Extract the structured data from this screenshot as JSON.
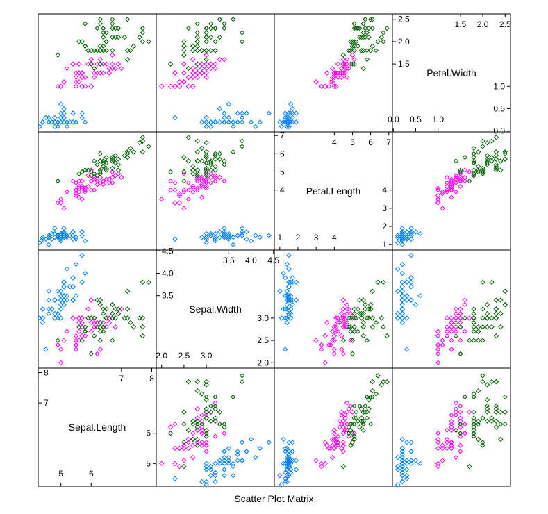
{
  "chart_data": {
    "type": "scatter",
    "title": "Scatter Plot Matrix",
    "variables": [
      {
        "name": "Sepal.Length",
        "range": [
          4.25,
          8.15
        ],
        "ticks_major": [
          5,
          6,
          7,
          8
        ],
        "ticks_outer": [
          7,
          8
        ],
        "ticks_inner": [
          5,
          6
        ]
      },
      {
        "name": "Sepal.Width",
        "range": [
          1.88,
          4.52
        ],
        "ticks_major": [
          2.0,
          2.5,
          3.0,
          3.5,
          4.0,
          4.5
        ],
        "ticks_outer": [
          3.5,
          4.0,
          4.5
        ],
        "ticks_inner": [
          2.0,
          2.5,
          3.0
        ],
        "tick_labels": [
          "2.0",
          "2.5",
          "3.0",
          "3.5",
          "4.0",
          "4.5"
        ]
      },
      {
        "name": "Petal.Length",
        "range": [
          0.7,
          7.2
        ],
        "ticks_major": [
          1,
          2,
          3,
          4,
          5,
          6,
          7
        ],
        "ticks_outer": [
          4,
          5,
          6,
          7
        ],
        "ticks_inner": [
          1,
          2,
          3,
          4
        ]
      },
      {
        "name": "Petal.Width",
        "range": [
          -0.02,
          2.62
        ],
        "ticks_major": [
          0.0,
          0.5,
          1.0,
          1.5,
          2.0,
          2.5
        ],
        "ticks_outer": [
          1.5,
          2.0,
          2.5
        ],
        "ticks_inner": [
          0.0,
          0.5,
          1.0
        ],
        "tick_labels": [
          "0.0",
          "0.5",
          "1.0",
          "1.5",
          "2.0",
          "2.5"
        ]
      }
    ],
    "groups": [
      {
        "color": "#0080ff",
        "points": [
          [
            5.1,
            3.5,
            1.4,
            0.2
          ],
          [
            4.9,
            3.0,
            1.4,
            0.2
          ],
          [
            4.7,
            3.2,
            1.3,
            0.2
          ],
          [
            4.6,
            3.1,
            1.5,
            0.2
          ],
          [
            5.0,
            3.6,
            1.4,
            0.2
          ],
          [
            5.4,
            3.9,
            1.7,
            0.4
          ],
          [
            4.6,
            3.4,
            1.4,
            0.3
          ],
          [
            5.0,
            3.4,
            1.5,
            0.2
          ],
          [
            4.4,
            2.9,
            1.4,
            0.2
          ],
          [
            4.9,
            3.1,
            1.5,
            0.1
          ],
          [
            5.4,
            3.7,
            1.5,
            0.2
          ],
          [
            4.8,
            3.4,
            1.6,
            0.2
          ],
          [
            4.8,
            3.0,
            1.4,
            0.1
          ],
          [
            4.3,
            3.0,
            1.1,
            0.1
          ],
          [
            5.8,
            4.0,
            1.2,
            0.2
          ],
          [
            5.7,
            4.4,
            1.5,
            0.4
          ],
          [
            5.4,
            3.9,
            1.3,
            0.4
          ],
          [
            5.1,
            3.5,
            1.4,
            0.3
          ],
          [
            5.7,
            3.8,
            1.7,
            0.3
          ],
          [
            5.1,
            3.8,
            1.5,
            0.3
          ],
          [
            5.4,
            3.4,
            1.7,
            0.2
          ],
          [
            5.1,
            3.7,
            1.5,
            0.4
          ],
          [
            4.6,
            3.6,
            1.0,
            0.2
          ],
          [
            5.1,
            3.3,
            1.7,
            0.5
          ],
          [
            4.8,
            3.4,
            1.9,
            0.2
          ],
          [
            5.0,
            3.0,
            1.6,
            0.2
          ],
          [
            5.0,
            3.4,
            1.6,
            0.4
          ],
          [
            5.2,
            3.5,
            1.5,
            0.2
          ],
          [
            5.2,
            3.4,
            1.4,
            0.2
          ],
          [
            4.7,
            3.2,
            1.6,
            0.2
          ],
          [
            4.8,
            3.1,
            1.6,
            0.2
          ],
          [
            5.4,
            3.4,
            1.5,
            0.4
          ],
          [
            5.2,
            4.1,
            1.5,
            0.1
          ],
          [
            5.5,
            4.2,
            1.4,
            0.2
          ],
          [
            4.9,
            3.1,
            1.5,
            0.2
          ],
          [
            5.0,
            3.2,
            1.2,
            0.2
          ],
          [
            5.5,
            3.5,
            1.3,
            0.2
          ],
          [
            4.9,
            3.6,
            1.4,
            0.1
          ],
          [
            4.4,
            3.0,
            1.3,
            0.2
          ],
          [
            5.1,
            3.4,
            1.5,
            0.2
          ],
          [
            5.0,
            3.5,
            1.3,
            0.3
          ],
          [
            4.5,
            2.3,
            1.3,
            0.3
          ],
          [
            4.4,
            3.2,
            1.3,
            0.2
          ],
          [
            5.0,
            3.5,
            1.6,
            0.6
          ],
          [
            5.1,
            3.8,
            1.9,
            0.4
          ],
          [
            4.8,
            3.0,
            1.4,
            0.3
          ],
          [
            5.1,
            3.8,
            1.6,
            0.2
          ],
          [
            4.6,
            3.2,
            1.4,
            0.2
          ],
          [
            5.3,
            3.7,
            1.5,
            0.2
          ],
          [
            5.0,
            3.3,
            1.4,
            0.2
          ]
        ]
      },
      {
        "color": "#ff00ff",
        "points": [
          [
            7.0,
            3.2,
            4.7,
            1.4
          ],
          [
            6.4,
            3.2,
            4.5,
            1.5
          ],
          [
            6.9,
            3.1,
            4.9,
            1.5
          ],
          [
            5.5,
            2.3,
            4.0,
            1.3
          ],
          [
            6.5,
            2.8,
            4.6,
            1.5
          ],
          [
            5.7,
            2.8,
            4.5,
            1.3
          ],
          [
            6.3,
            3.3,
            4.7,
            1.6
          ],
          [
            4.9,
            2.4,
            3.3,
            1.0
          ],
          [
            6.6,
            2.9,
            4.6,
            1.3
          ],
          [
            5.2,
            2.7,
            3.9,
            1.4
          ],
          [
            5.0,
            2.0,
            3.5,
            1.0
          ],
          [
            5.9,
            3.0,
            4.2,
            1.5
          ],
          [
            6.0,
            2.2,
            4.0,
            1.0
          ],
          [
            6.1,
            2.9,
            4.7,
            1.4
          ],
          [
            5.6,
            2.9,
            3.6,
            1.3
          ],
          [
            6.7,
            3.1,
            4.4,
            1.4
          ],
          [
            5.6,
            3.0,
            4.5,
            1.5
          ],
          [
            5.8,
            2.7,
            4.1,
            1.0
          ],
          [
            6.2,
            2.2,
            4.5,
            1.5
          ],
          [
            5.6,
            2.5,
            3.9,
            1.1
          ],
          [
            5.9,
            3.2,
            4.8,
            1.8
          ],
          [
            6.1,
            2.8,
            4.0,
            1.3
          ],
          [
            6.3,
            2.5,
            4.9,
            1.5
          ],
          [
            6.1,
            2.8,
            4.7,
            1.2
          ],
          [
            6.4,
            2.9,
            4.3,
            1.3
          ],
          [
            6.6,
            3.0,
            4.4,
            1.4
          ],
          [
            6.8,
            2.8,
            4.8,
            1.4
          ],
          [
            6.7,
            3.0,
            5.0,
            1.7
          ],
          [
            6.0,
            2.9,
            4.5,
            1.5
          ],
          [
            5.7,
            2.6,
            3.5,
            1.0
          ],
          [
            5.5,
            2.4,
            3.8,
            1.1
          ],
          [
            5.5,
            2.4,
            3.7,
            1.0
          ],
          [
            5.8,
            2.7,
            3.9,
            1.2
          ],
          [
            6.0,
            2.7,
            5.1,
            1.6
          ],
          [
            5.4,
            3.0,
            4.5,
            1.5
          ],
          [
            6.0,
            3.4,
            4.5,
            1.6
          ],
          [
            6.7,
            3.1,
            4.7,
            1.5
          ],
          [
            6.3,
            2.3,
            4.4,
            1.3
          ],
          [
            5.6,
            3.0,
            4.1,
            1.3
          ],
          [
            5.5,
            2.5,
            4.0,
            1.3
          ],
          [
            5.5,
            2.6,
            4.4,
            1.2
          ],
          [
            6.1,
            3.0,
            4.6,
            1.4
          ],
          [
            5.8,
            2.6,
            4.0,
            1.2
          ],
          [
            5.0,
            2.3,
            3.3,
            1.0
          ],
          [
            5.6,
            2.7,
            4.2,
            1.3
          ],
          [
            5.7,
            3.0,
            4.2,
            1.2
          ],
          [
            5.7,
            2.9,
            4.2,
            1.3
          ],
          [
            6.2,
            2.9,
            4.3,
            1.3
          ],
          [
            5.1,
            2.5,
            3.0,
            1.1
          ],
          [
            5.7,
            2.8,
            4.1,
            1.3
          ]
        ]
      },
      {
        "color": "#006400",
        "points": [
          [
            6.3,
            3.3,
            6.0,
            2.5
          ],
          [
            5.8,
            2.7,
            5.1,
            1.9
          ],
          [
            7.1,
            3.0,
            5.9,
            2.1
          ],
          [
            6.3,
            2.9,
            5.6,
            1.8
          ],
          [
            6.5,
            3.0,
            5.8,
            2.2
          ],
          [
            7.6,
            3.0,
            6.6,
            2.1
          ],
          [
            4.9,
            2.5,
            4.5,
            1.7
          ],
          [
            7.3,
            2.9,
            6.3,
            1.8
          ],
          [
            6.7,
            2.5,
            5.8,
            1.8
          ],
          [
            7.2,
            3.6,
            6.1,
            2.5
          ],
          [
            6.5,
            3.2,
            5.1,
            2.0
          ],
          [
            6.4,
            2.7,
            5.3,
            1.9
          ],
          [
            6.8,
            3.0,
            5.5,
            2.1
          ],
          [
            5.7,
            2.5,
            5.0,
            2.0
          ],
          [
            5.8,
            2.8,
            5.1,
            2.4
          ],
          [
            6.4,
            3.2,
            5.3,
            2.3
          ],
          [
            6.5,
            3.0,
            5.5,
            1.8
          ],
          [
            7.7,
            3.8,
            6.7,
            2.2
          ],
          [
            7.7,
            2.6,
            6.9,
            2.3
          ],
          [
            6.0,
            2.2,
            5.0,
            1.5
          ],
          [
            6.9,
            3.2,
            5.7,
            2.3
          ],
          [
            5.6,
            2.8,
            4.9,
            2.0
          ],
          [
            7.7,
            2.8,
            6.7,
            2.0
          ],
          [
            6.3,
            2.7,
            4.9,
            1.8
          ],
          [
            6.7,
            3.3,
            5.7,
            2.1
          ],
          [
            7.2,
            3.2,
            6.0,
            1.8
          ],
          [
            6.2,
            2.8,
            4.8,
            1.8
          ],
          [
            6.1,
            3.0,
            4.9,
            1.8
          ],
          [
            6.4,
            2.8,
            5.6,
            2.1
          ],
          [
            7.2,
            3.0,
            5.8,
            1.6
          ],
          [
            7.4,
            2.8,
            6.1,
            1.9
          ],
          [
            7.9,
            3.8,
            6.4,
            2.0
          ],
          [
            6.4,
            2.8,
            5.6,
            2.2
          ],
          [
            6.3,
            2.8,
            5.1,
            1.5
          ],
          [
            6.1,
            2.6,
            5.6,
            1.4
          ],
          [
            7.7,
            3.0,
            6.1,
            2.3
          ],
          [
            6.3,
            3.4,
            5.6,
            2.4
          ],
          [
            6.4,
            3.1,
            5.5,
            1.8
          ],
          [
            6.0,
            3.0,
            4.8,
            1.8
          ],
          [
            6.9,
            3.1,
            5.4,
            2.1
          ],
          [
            6.7,
            3.1,
            5.6,
            2.4
          ],
          [
            6.9,
            3.1,
            5.1,
            2.3
          ],
          [
            5.8,
            2.7,
            5.1,
            1.9
          ],
          [
            6.8,
            3.2,
            5.9,
            2.3
          ],
          [
            6.7,
            3.3,
            5.7,
            2.5
          ],
          [
            6.7,
            3.0,
            5.2,
            2.3
          ],
          [
            6.3,
            2.5,
            5.0,
            1.9
          ],
          [
            6.5,
            3.0,
            5.2,
            2.0
          ],
          [
            6.2,
            3.4,
            5.4,
            2.3
          ],
          [
            5.9,
            3.0,
            5.1,
            1.8
          ]
        ]
      }
    ]
  }
}
